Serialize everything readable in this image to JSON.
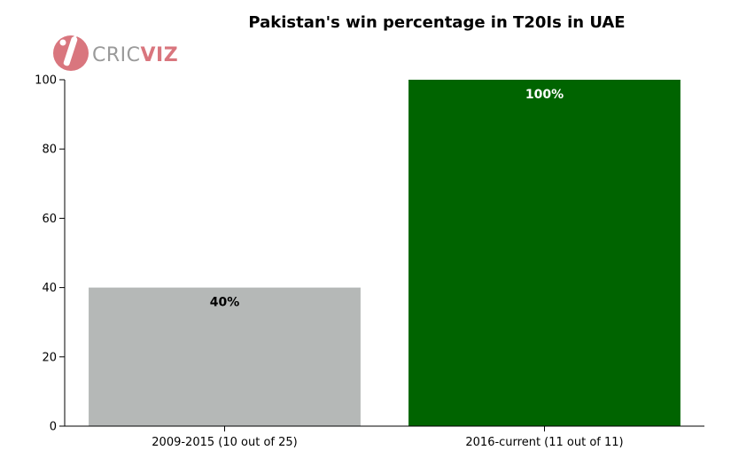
{
  "logo": {
    "text_light": "CRIC",
    "text_bold": "VIZ",
    "color_light": "#9a9a9a",
    "color_bold": "#d9767e",
    "icon_color": "#d9767e",
    "icon": "cricket-bat-ball-icon"
  },
  "chart_data": {
    "type": "bar",
    "title": "Pakistan's win percentage in T20Is in UAE",
    "xlabel": "",
    "ylabel": "",
    "categories": [
      "2009-2015 (10 out of 25)",
      "2016-current (11 out of 11)"
    ],
    "values": [
      40,
      100
    ],
    "data_labels": [
      "40%",
      "100%"
    ],
    "colors": [
      "#b5b8b7",
      "#006400"
    ],
    "label_colors": [
      "#000000",
      "#ffffff"
    ],
    "ylim": [
      0,
      100
    ],
    "yticks": [
      0,
      20,
      40,
      60,
      80,
      100
    ],
    "grid": false,
    "legend": "none"
  }
}
